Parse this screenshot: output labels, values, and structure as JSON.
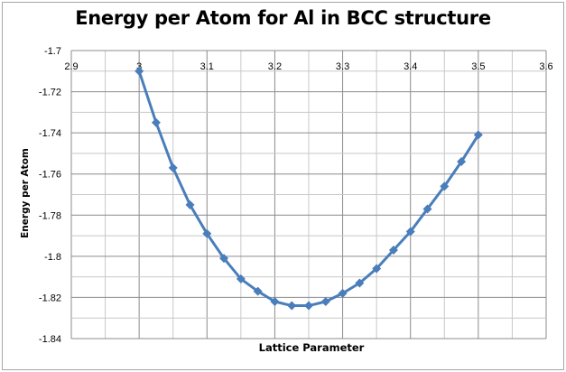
{
  "chart_data": {
    "type": "line",
    "title": "Energy per Atom for Al in BCC structure",
    "xlabel": "Lattice Parameter",
    "ylabel": "Energy per Atom",
    "xlim": [
      2.9,
      3.6
    ],
    "ylim": [
      -1.84,
      -1.7
    ],
    "x_ticks": [
      "2.9",
      "3",
      "3.1",
      "3.2",
      "3.3",
      "3.4",
      "3.5",
      "3.6"
    ],
    "y_ticks": [
      "-1.7",
      "-1.72",
      "-1.74",
      "-1.76",
      "-1.78",
      "-1.8",
      "-1.82",
      "-1.84"
    ],
    "grid": true,
    "x_axis_position": "top",
    "legend": null,
    "series": [
      {
        "name": "Energy per Atom",
        "color": "#4a7ebb",
        "marker": "diamond",
        "x": [
          3.0,
          3.025,
          3.05,
          3.075,
          3.1,
          3.125,
          3.15,
          3.175,
          3.2,
          3.225,
          3.25,
          3.275,
          3.3,
          3.325,
          3.35,
          3.375,
          3.4,
          3.425,
          3.45,
          3.475,
          3.5
        ],
        "values": [
          -1.71,
          -1.735,
          -1.757,
          -1.775,
          -1.789,
          -1.801,
          -1.811,
          -1.817,
          -1.822,
          -1.824,
          -1.824,
          -1.822,
          -1.818,
          -1.813,
          -1.806,
          -1.797,
          -1.788,
          -1.777,
          -1.766,
          -1.754,
          -1.741
        ]
      }
    ]
  }
}
